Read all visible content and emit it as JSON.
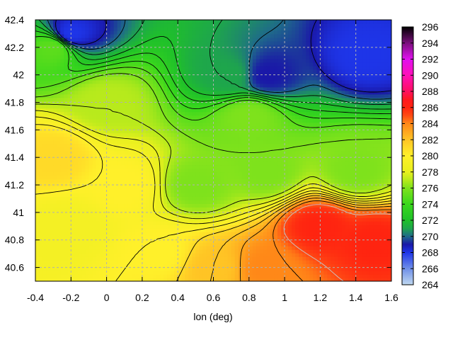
{
  "chart_data": {
    "type": "heatmap",
    "title": "",
    "xlabel": "lon (deg)",
    "ylabel": "",
    "xlim": [
      -0.4,
      1.6
    ],
    "ylim": [
      40.5,
      42.4
    ],
    "xticks": [
      -0.4,
      -0.2,
      0,
      0.2,
      0.4,
      0.6,
      0.8,
      1,
      1.2,
      1.4,
      1.6
    ],
    "xtick_labels": [
      "-0.4",
      "-0.2",
      "0",
      "0.2",
      "0.4",
      "0.6",
      "0.8",
      "1",
      "1.2",
      "1.4",
      "1.6"
    ],
    "yticks": [
      40.6,
      40.8,
      41,
      41.2,
      41.4,
      41.6,
      41.8,
      42,
      42.2,
      42.4
    ],
    "ytick_labels": [
      "40.6",
      "40.8",
      "41",
      "41.2",
      "41.4",
      "41.6",
      "41.8",
      "42",
      "42.2",
      "42.4"
    ],
    "colorbar": {
      "min": 264,
      "max": 296,
      "ticks": [
        264,
        266,
        268,
        270,
        272,
        274,
        276,
        278,
        280,
        282,
        284,
        286,
        288,
        290,
        292,
        294,
        296
      ],
      "tick_labels": [
        "264",
        "266",
        "268",
        "270",
        "272",
        "274",
        "276",
        "278",
        "280",
        "282",
        "284",
        "286",
        "288",
        "290",
        "292",
        "294",
        "296"
      ],
      "colors": [
        [
          264,
          "#bfd8f0"
        ],
        [
          266,
          "#6f8fe8"
        ],
        [
          268,
          "#1e35e8"
        ],
        [
          269,
          "#1a18a8"
        ],
        [
          270,
          "#1f6a8a"
        ],
        [
          271,
          "#1ea64c"
        ],
        [
          272,
          "#1fc02a"
        ],
        [
          274,
          "#3ad81c"
        ],
        [
          276,
          "#7ee21c"
        ],
        [
          277,
          "#b8ea1c"
        ],
        [
          278,
          "#e8f01e"
        ],
        [
          280,
          "#fff02a"
        ],
        [
          282,
          "#ffc425"
        ],
        [
          284,
          "#ff8818"
        ],
        [
          285,
          "#ff4a14"
        ],
        [
          286,
          "#ff2410"
        ],
        [
          287,
          "#ff1820"
        ],
        [
          288,
          "#ff1060"
        ],
        [
          290,
          "#ff10b8"
        ],
        [
          292,
          "#e010ef"
        ],
        [
          294,
          "#7a107c"
        ],
        [
          296,
          "#000000"
        ]
      ]
    },
    "grid": true,
    "grid_style": "dashed",
    "contours": true,
    "sample_values": [
      {
        "x": -0.3,
        "y": 42.2,
        "value": 275
      },
      {
        "x": -0.2,
        "y": 42.3,
        "value": 268
      },
      {
        "x": 1.45,
        "y": 42.15,
        "value": 268
      },
      {
        "x": 0.9,
        "y": 42.0,
        "value": 269
      },
      {
        "x": 0.7,
        "y": 42.0,
        "value": 271
      },
      {
        "x": 0.0,
        "y": 41.8,
        "value": 277
      },
      {
        "x": 0.8,
        "y": 41.7,
        "value": 276
      },
      {
        "x": -0.3,
        "y": 41.4,
        "value": 281
      },
      {
        "x": 0.1,
        "y": 41.2,
        "value": 280
      },
      {
        "x": 0.5,
        "y": 41.2,
        "value": 276
      },
      {
        "x": 0.9,
        "y": 41.3,
        "value": 276
      },
      {
        "x": 1.4,
        "y": 41.3,
        "value": 276
      },
      {
        "x": -0.2,
        "y": 40.9,
        "value": 279
      },
      {
        "x": 0.3,
        "y": 40.7,
        "value": 280
      },
      {
        "x": 0.6,
        "y": 40.6,
        "value": 282
      },
      {
        "x": 0.9,
        "y": 40.6,
        "value": 284
      },
      {
        "x": 1.2,
        "y": 40.9,
        "value": 286
      },
      {
        "x": 1.5,
        "y": 40.8,
        "value": 286
      }
    ]
  }
}
